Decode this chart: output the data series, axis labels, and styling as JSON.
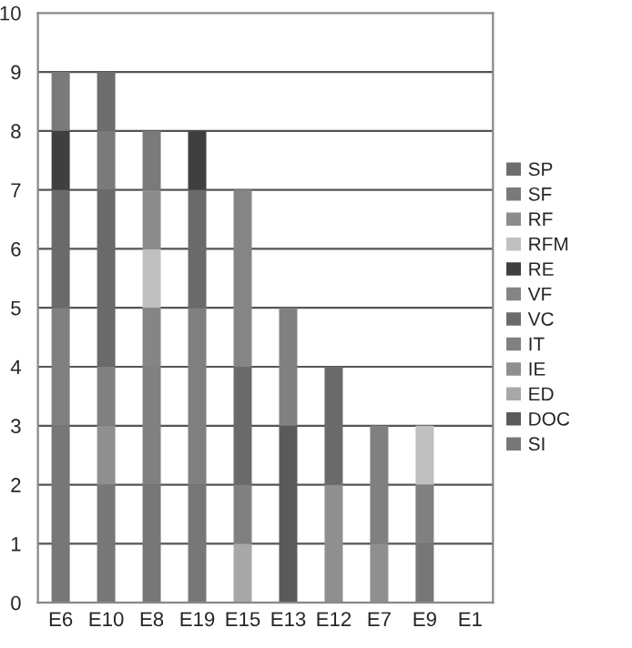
{
  "chart_data": {
    "type": "bar",
    "stacked": true,
    "categories": [
      "E6",
      "E10",
      "E8",
      "E19",
      "E15",
      "E13",
      "E12",
      "E7",
      "E9",
      "E1"
    ],
    "series": [
      {
        "name": "SI",
        "color": "#777777",
        "values": [
          3,
          2,
          2,
          2,
          0,
          0,
          0,
          0,
          1,
          0
        ]
      },
      {
        "name": "DOC",
        "color": "#5a5a5a",
        "values": [
          0,
          0,
          0,
          0,
          0,
          3,
          0,
          0,
          0,
          0
        ]
      },
      {
        "name": "ED",
        "color": "#a8a8a8",
        "values": [
          0,
          0,
          0,
          0,
          1,
          0,
          0,
          0,
          0,
          0
        ]
      },
      {
        "name": "IE",
        "color": "#8f8f8f",
        "values": [
          0,
          1,
          0,
          0,
          0,
          0,
          2,
          1,
          0,
          0
        ]
      },
      {
        "name": "IT",
        "color": "#808080",
        "values": [
          2,
          1,
          2,
          3,
          1,
          2,
          0,
          2,
          1,
          0
        ]
      },
      {
        "name": "VC",
        "color": "#6a6a6a",
        "values": [
          2,
          3,
          0,
          2,
          2,
          0,
          2,
          0,
          0,
          0
        ]
      },
      {
        "name": "VF",
        "color": "#858585",
        "values": [
          0,
          0,
          1,
          0,
          3,
          0,
          0,
          0,
          0,
          0
        ]
      },
      {
        "name": "RE",
        "color": "#3f3f3f",
        "values": [
          1,
          0,
          0,
          1,
          0,
          0,
          0,
          0,
          0,
          0
        ]
      },
      {
        "name": "RFM",
        "color": "#c0c0c0",
        "values": [
          0,
          0,
          1,
          0,
          0,
          0,
          0,
          0,
          1,
          0
        ]
      },
      {
        "name": "RF",
        "color": "#8c8c8c",
        "values": [
          0,
          0,
          1,
          0,
          0,
          0,
          0,
          0,
          0,
          0
        ]
      },
      {
        "name": "SF",
        "color": "#7a7a7a",
        "values": [
          1,
          1,
          1,
          0,
          0,
          0,
          0,
          0,
          0,
          0
        ]
      },
      {
        "name": "SP",
        "color": "#6e6e6e",
        "values": [
          0,
          1,
          0,
          0,
          0,
          0,
          0,
          0,
          0,
          0
        ]
      }
    ],
    "ylim": [
      0,
      10
    ],
    "yticks": [
      0,
      1,
      2,
      3,
      4,
      5,
      6,
      7,
      8,
      9,
      10
    ],
    "grid": "y",
    "legend": "right"
  }
}
